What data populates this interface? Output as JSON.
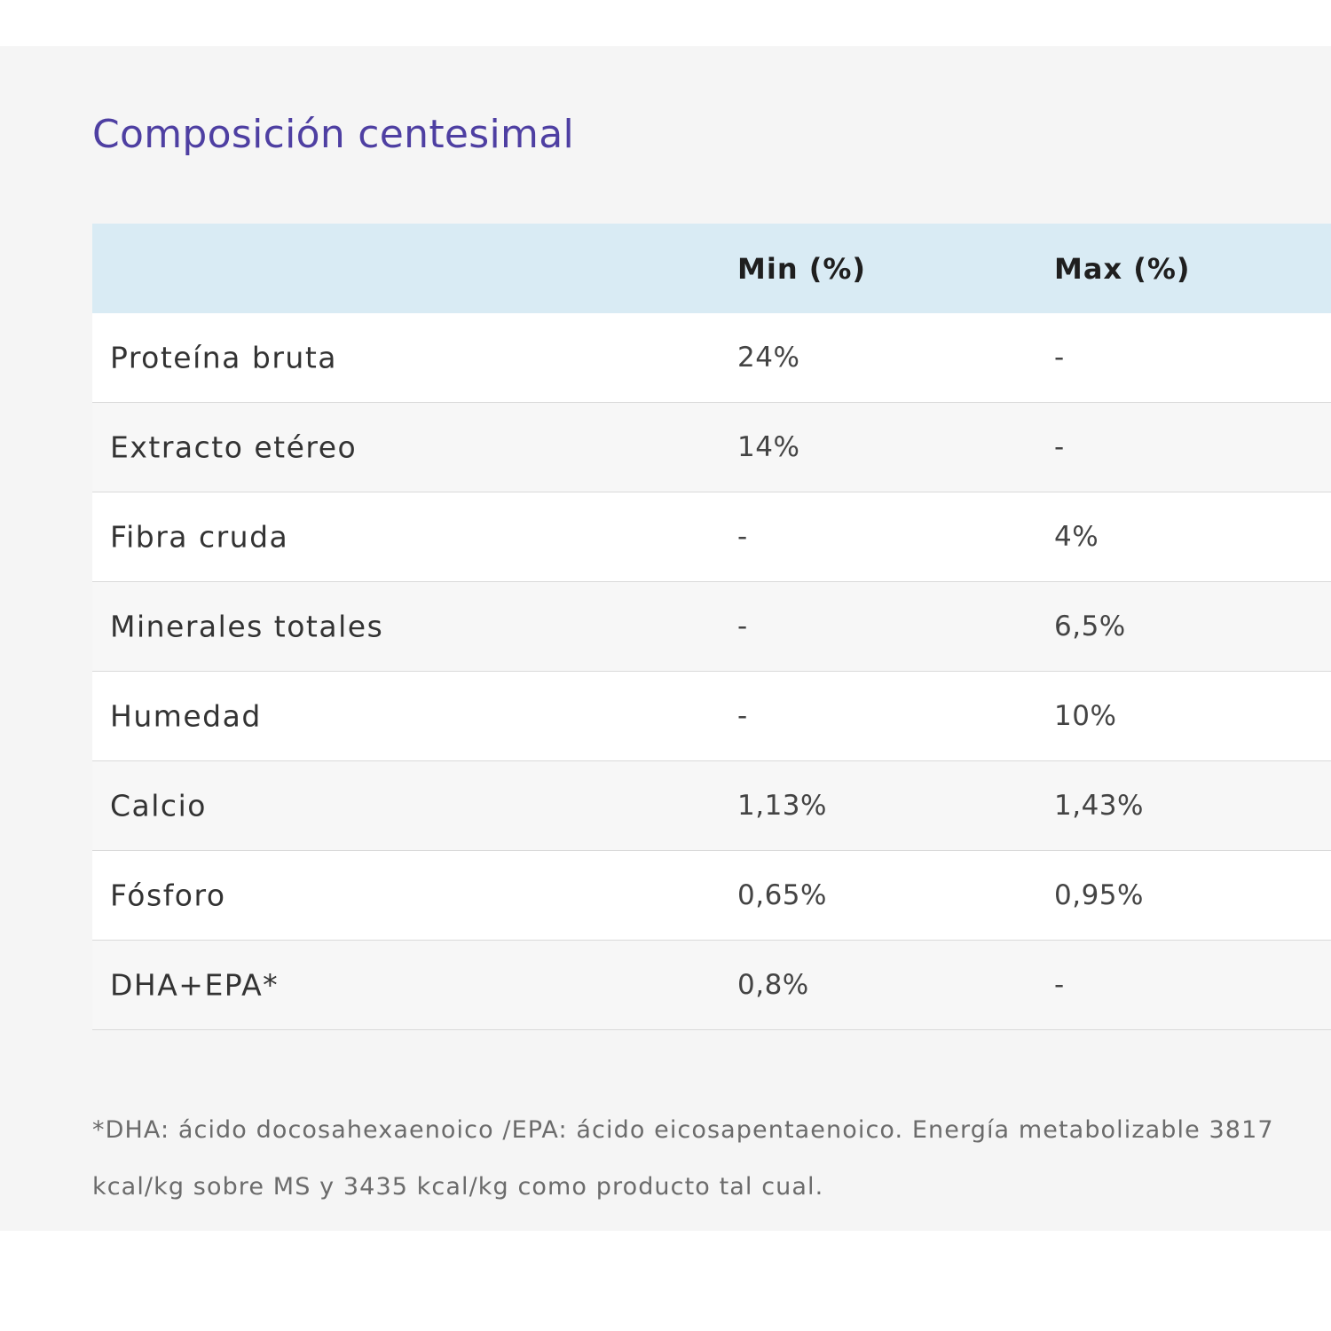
{
  "section": {
    "title": "Composición centesimal"
  },
  "table": {
    "headers": [
      "",
      "Min (%)",
      "Max (%)"
    ],
    "rows": [
      {
        "name": "Proteína bruta",
        "min": "24%",
        "max": "-"
      },
      {
        "name": "Extracto etéreo",
        "min": "14%",
        "max": "-"
      },
      {
        "name": "Fibra cruda",
        "min": "-",
        "max": "4%"
      },
      {
        "name": "Minerales totales",
        "min": "-",
        "max": "6,5%"
      },
      {
        "name": "Humedad",
        "min": "-",
        "max": "10%"
      },
      {
        "name": "Calcio",
        "min": "1,13%",
        "max": "1,43%"
      },
      {
        "name": "Fósforo",
        "min": "0,65%",
        "max": "0,95%"
      },
      {
        "name": "DHA+EPA*",
        "min": "0,8%",
        "max": "-"
      }
    ]
  },
  "footnote": "*DHA: ácido docosahexaenoico /EPA: ácido eicosapentaenoico. Energía metabolizable 3817 kcal/kg sobre MS y 3435 kcal/kg como producto tal cual.",
  "colors": {
    "title": "#4e3fa2",
    "header_bg": "#d9ebf4",
    "panel_bg": "#f5f5f5"
  }
}
